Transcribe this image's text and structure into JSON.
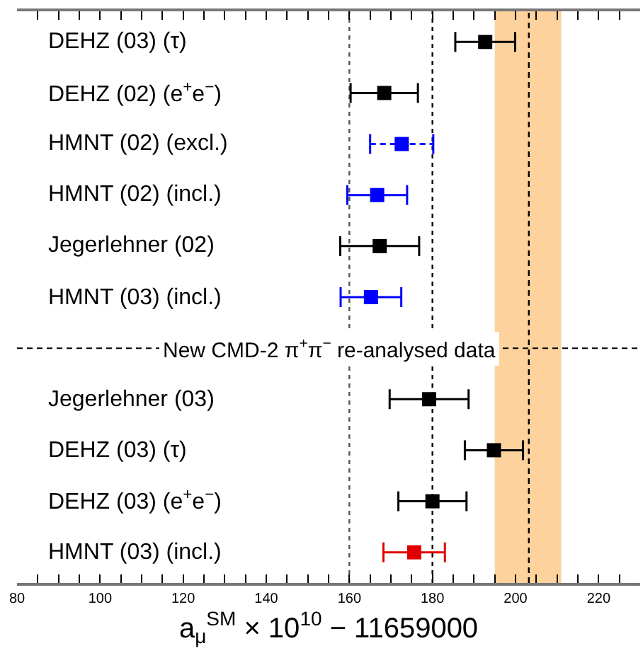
{
  "chart_data": {
    "type": "scatter",
    "categories": [
      "DEHZ (03) (τ)",
      "DEHZ (02) (e$^{+}$e$^{−}$)",
      "HMNT (02) (excl.)",
      "HMNT (02) (incl.)",
      "Jegerlehner (02)",
      "HMNT (03) (incl.)",
      "New CMD-2 π$^{+}$π$^{−}$ re-analysed data",
      "Jegerlehner (03)",
      "DEHZ (03) (τ)",
      "DEHZ (03) (e$^{+}$e$^{−}$)",
      "HMNT (03) (incl.)"
    ],
    "series": [
      {
        "color": "#000000",
        "line_style": "solid",
        "values": [
          192.7,
          168.4,
          null,
          null,
          167.3,
          null,
          null,
          179.2,
          194.8,
          180.0,
          null
        ],
        "errors": [
          7.2,
          8.1,
          null,
          null,
          9.5,
          null,
          null,
          9.5,
          7.0,
          8.2,
          null
        ]
      },
      {
        "color": "#0000ff",
        "line_style": "solid",
        "values": [
          null,
          null,
          null,
          166.7,
          null,
          165.2,
          null,
          null,
          null,
          null,
          null
        ],
        "errors": [
          null,
          null,
          null,
          7.2,
          null,
          7.3,
          null,
          null,
          null,
          null,
          null
        ]
      },
      {
        "color": "#0000ff",
        "line_style": "dashed",
        "values": [
          null,
          null,
          172.6,
          null,
          null,
          null,
          null,
          null,
          null,
          null,
          null
        ],
        "errors": [
          null,
          null,
          7.6,
          null,
          null,
          null,
          null,
          null,
          null,
          null,
          null
        ]
      },
      {
        "color": "#e00000",
        "line_style": "solid",
        "values": [
          null,
          null,
          null,
          null,
          null,
          null,
          null,
          null,
          null,
          null,
          175.6
        ],
        "errors": [
          null,
          null,
          null,
          null,
          null,
          null,
          null,
          null,
          null,
          null,
          7.4
        ]
      }
    ],
    "orientation": "horizontal",
    "marker": "square",
    "xlabel": "a$_{μ}$$^{SM}$ × 10$^{10}$ − 11659000",
    "xlim": [
      80,
      230
    ],
    "xticks": [
      80,
      {
        "value": 85,
        "label": null
      },
      {
        "value": 90,
        "label": null
      },
      {
        "value": 95,
        "label": null
      },
      100,
      {
        "value": 105,
        "label": null
      },
      {
        "value": 110,
        "label": null
      },
      {
        "value": 115,
        "label": null
      },
      120,
      {
        "value": 125,
        "label": null
      },
      {
        "value": 130,
        "label": null
      },
      {
        "value": 135,
        "label": null
      },
      140,
      {
        "value": 145,
        "label": null
      },
      {
        "value": 150,
        "label": null
      },
      {
        "value": 155,
        "label": null
      },
      160,
      {
        "value": 165,
        "label": null
      },
      {
        "value": 170,
        "label": null
      },
      {
        "value": 175,
        "label": null
      },
      180,
      {
        "value": 185,
        "label": null
      },
      {
        "value": 190,
        "label": null
      },
      {
        "value": 195,
        "label": null
      },
      200,
      {
        "value": 205,
        "label": null
      },
      {
        "value": 210,
        "label": null
      },
      {
        "value": 215,
        "label": null
      },
      220,
      {
        "value": 225,
        "label": null
      }
    ],
    "ref_lines": [
      {
        "axis": "x",
        "value": 160,
        "line_style": "dotted",
        "color": "#555555"
      },
      {
        "axis": "x",
        "value": 180,
        "line_style": "dotted",
        "color": "#000000"
      },
      {
        "axis": "x",
        "value": 203.2,
        "line_style": "dashed",
        "color": "#000000"
      },
      {
        "axis": "y",
        "value": "New CMD-2 π$^{+}$π$^{−}$ re-analysed data",
        "line_style": "dashed",
        "color": "#000000"
      }
    ],
    "bands": [
      {
        "axis": "x",
        "from": 195,
        "to": 211,
        "color": "#fdd29c"
      }
    ],
    "grid": false
  }
}
